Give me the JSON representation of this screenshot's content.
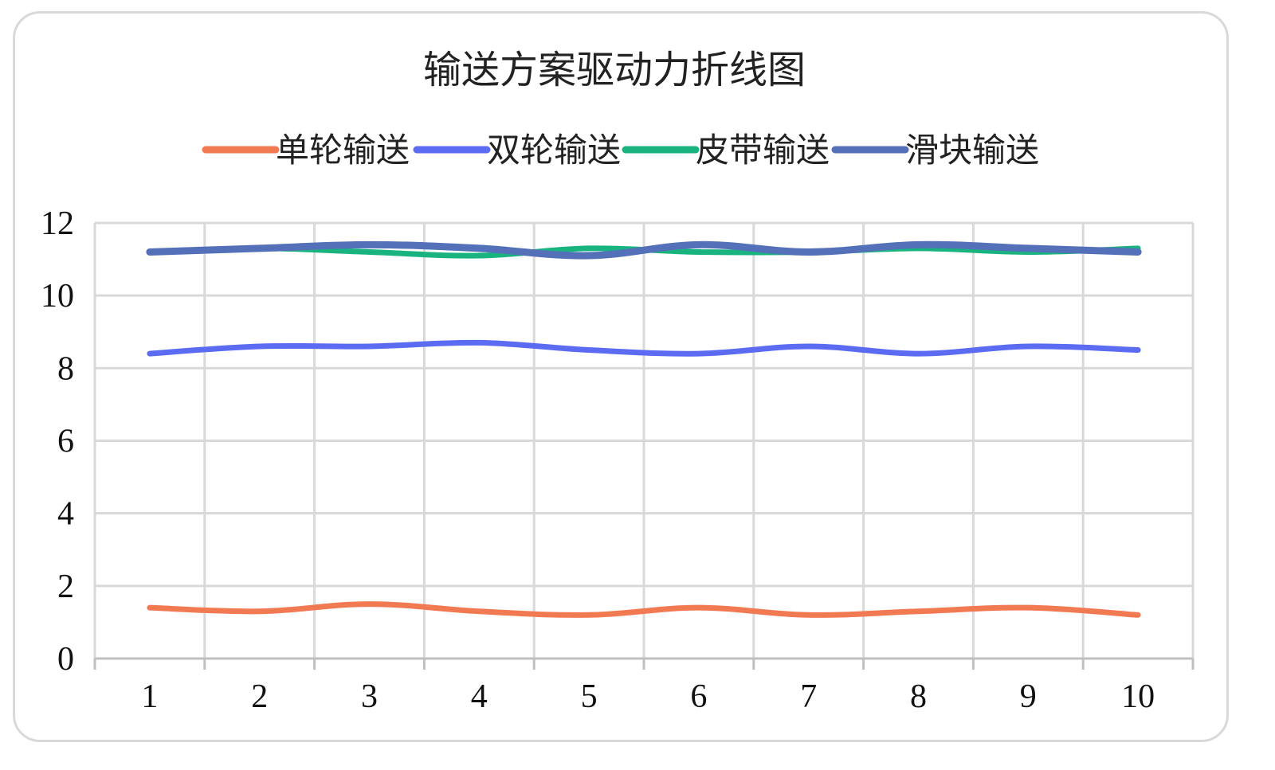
{
  "chart_data": {
    "type": "line",
    "title": "输送方案驱动力折线图",
    "xlabel": "",
    "ylabel": "",
    "categories": [
      "1",
      "2",
      "3",
      "4",
      "5",
      "6",
      "7",
      "8",
      "9",
      "10"
    ],
    "ylim": [
      0,
      12
    ],
    "yticks": [
      "0",
      "2",
      "4",
      "6",
      "8",
      "10",
      "12"
    ],
    "grid": true,
    "legend_position": "top",
    "series": [
      {
        "name": "单轮输送",
        "color": "#f27a52",
        "values": [
          1.4,
          1.3,
          1.5,
          1.3,
          1.2,
          1.4,
          1.2,
          1.3,
          1.4,
          1.2
        ]
      },
      {
        "name": "双轮输送",
        "color": "#5b6cf2",
        "values": [
          8.4,
          8.6,
          8.6,
          8.7,
          8.5,
          8.4,
          8.6,
          8.4,
          8.6,
          8.5
        ]
      },
      {
        "name": "皮带输送",
        "color": "#19b37f",
        "values": [
          11.2,
          11.3,
          11.2,
          11.1,
          11.3,
          11.2,
          11.2,
          11.3,
          11.2,
          11.3
        ]
      },
      {
        "name": "滑块输送",
        "color": "#5470b8",
        "values": [
          11.2,
          11.3,
          11.4,
          11.3,
          11.1,
          11.4,
          11.2,
          11.4,
          11.3,
          11.2
        ]
      }
    ]
  }
}
